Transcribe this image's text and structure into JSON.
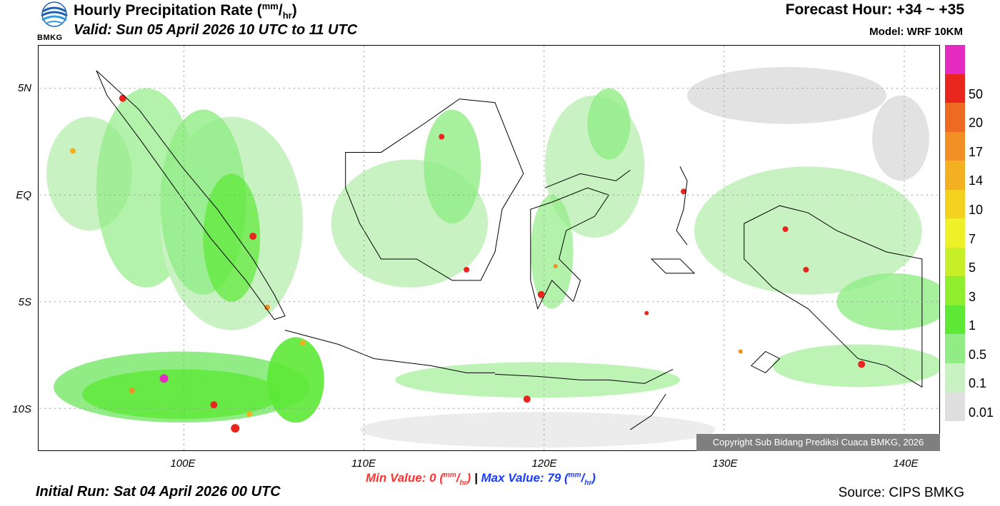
{
  "header": {
    "title": "Hourly Precipitation Rate (",
    "title_unit_num": "mm",
    "title_unit_den": "hr",
    "title_close": ")",
    "valid": "Valid: Sun 05 April 2026 10 UTC to 11 UTC",
    "forecast_hour": "Forecast Hour: +34 ~ +35",
    "model": "Model: WRF 10KM",
    "logo_text": "BMKG"
  },
  "map": {
    "lat_labels": [
      "5N",
      "EQ",
      "5S",
      "10S"
    ],
    "lon_labels": [
      "100E",
      "110E",
      "120E",
      "130E",
      "140E"
    ],
    "copyright": "Copyright Sub Bidang Prediksi Cuaca BMKG, 2026"
  },
  "stats": {
    "min_label": "Min Value:",
    "min_value": "0",
    "separator": "|",
    "max_label": "Max Value:",
    "max_value": "79",
    "unit_num": "mm",
    "unit_den": "hr"
  },
  "footer": {
    "initial_run": "Initial Run: Sat 04 April 2026 00 UTC",
    "source": "Source: CIPS BMKG"
  },
  "colorbar": {
    "levels": [
      {
        "label": "",
        "color": "#e32bc0"
      },
      {
        "label": "50",
        "color": "#e8251f"
      },
      {
        "label": "20",
        "color": "#ec6a22"
      },
      {
        "label": "17",
        "color": "#f18f24"
      },
      {
        "label": "14",
        "color": "#f3b121"
      },
      {
        "label": "10",
        "color": "#f3d11f"
      },
      {
        "label": "7",
        "color": "#eef028"
      },
      {
        "label": "5",
        "color": "#c6ef2a"
      },
      {
        "label": "3",
        "color": "#8fee2e"
      },
      {
        "label": "1",
        "color": "#5de936"
      },
      {
        "label": "0.5",
        "color": "#91ec86"
      },
      {
        "label": "0.1",
        "color": "#c8f2c1"
      },
      {
        "label": "0.01",
        "color": "#dfdfdf"
      }
    ]
  }
}
